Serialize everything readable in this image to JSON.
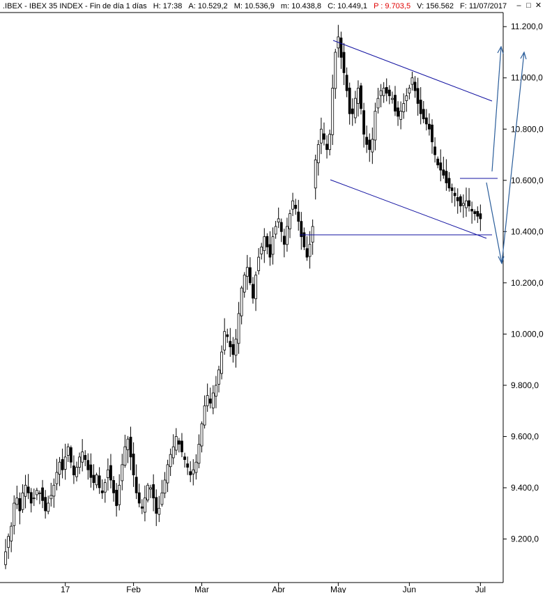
{
  "header": {
    "title": ".IBEX - IBEX 35 INDEX - Fin de día 1 días",
    "fields": [
      {
        "label": "H:",
        "value": "17:38",
        "red": false
      },
      {
        "label": "A:",
        "value": "10.529,2",
        "red": false
      },
      {
        "label": "M:",
        "value": "10.536,9",
        "red": false
      },
      {
        "label": "m:",
        "value": "10.438,8",
        "red": false
      },
      {
        "label": "C:",
        "value": "10.449,1",
        "red": false
      },
      {
        "label": "P :",
        "value": "9.703,5",
        "red": true
      },
      {
        "label": "V:",
        "value": "156.562",
        "red": false
      },
      {
        "label": "F:",
        "value": "11/07/2017",
        "red": false
      }
    ]
  },
  "window_controls": {
    "minimize": "–",
    "restore": "□",
    "close": "✕"
  },
  "colors": {
    "up": "#ffffff",
    "down": "#000000",
    "trendline": "#1010a0",
    "arrow": "#2a5d9a"
  },
  "chart_data": {
    "type": "candlestick",
    "title": "",
    "y_axis": {
      "ticks": [
        {
          "value": 11200,
          "label": "11.200,0"
        },
        {
          "value": 11000,
          "label": "11.000,0"
        },
        {
          "value": 10800,
          "label": "10.800,0"
        },
        {
          "value": 10600,
          "label": "10.600,0"
        },
        {
          "value": 10400,
          "label": "10.400,0"
        },
        {
          "value": 10200,
          "label": "10.200,0"
        },
        {
          "value": 10000,
          "label": "10.000,0"
        },
        {
          "value": 9800,
          "label": "9.800,0"
        },
        {
          "value": 9600,
          "label": "9.600,0"
        },
        {
          "value": 9400,
          "label": "9.400,0"
        },
        {
          "value": 9200,
          "label": "9.200,0"
        }
      ],
      "ylim": [
        9030,
        11255
      ]
    },
    "x_axis": {
      "ticks": [
        {
          "index": 21,
          "label": "17"
        },
        {
          "index": 45,
          "label": "Feb"
        },
        {
          "index": 69,
          "label": "Mar"
        },
        {
          "index": 96,
          "label": "Abr"
        },
        {
          "index": 117,
          "label": "May"
        },
        {
          "index": 142,
          "label": "Jun"
        },
        {
          "index": 167,
          "label": "Jul"
        }
      ]
    },
    "series": [
      {
        "values": [
          9150,
          9210,
          9250,
          9340,
          9360,
          9310,
          9380,
          9410,
          9380,
          9340,
          9360,
          9390,
          9380,
          9350,
          9310,
          9340,
          9370,
          9410,
          9460,
          9500,
          9470,
          9520,
          9560,
          9500,
          9450,
          9480,
          9520,
          9540,
          9510,
          9470,
          9440,
          9420,
          9450,
          9400,
          9380,
          9420,
          9470,
          9430,
          9380,
          9330,
          9410,
          9490,
          9560,
          9590,
          9520,
          9450,
          9380,
          9340,
          9320,
          9360,
          9410,
          9400,
          9360,
          9300,
          9320,
          9380,
          9430,
          9490,
          9530,
          9560,
          9600,
          9570,
          9540,
          9510,
          9480,
          9450,
          9470,
          9500,
          9570,
          9650,
          9720,
          9760,
          9730,
          9770,
          9800,
          9860,
          9930,
          10010,
          9990,
          9950,
          9920,
          9980,
          10080,
          10180,
          10230,
          10260,
          10200,
          10140,
          10230,
          10300,
          10340,
          10380,
          10340,
          10300,
          10380,
          10420,
          10450,
          10400,
          10350,
          10420,
          10470,
          10520,
          10490,
          10440,
          10380,
          10340,
          10300,
          10350,
          10420,
          10680,
          10740,
          10800,
          10760,
          10720,
          10780,
          10960,
          11100,
          11160,
          11080,
          11020,
          10950,
          10860,
          10860,
          10920,
          10960,
          10880,
          10780,
          10740,
          10720,
          10760,
          10870,
          10920,
          10950,
          10960,
          10940,
          10930,
          10920,
          10870,
          10850,
          10870,
          10900,
          10930,
          10960,
          11000,
          10950,
          10900,
          10860,
          10840,
          10820,
          10800,
          10750,
          10700,
          10660,
          10640,
          10620,
          10590,
          10570,
          10560,
          10540,
          10520,
          10500,
          10510,
          10520,
          10500,
          10480,
          10470,
          10460,
          10450
        ]
      }
    ]
  }
}
